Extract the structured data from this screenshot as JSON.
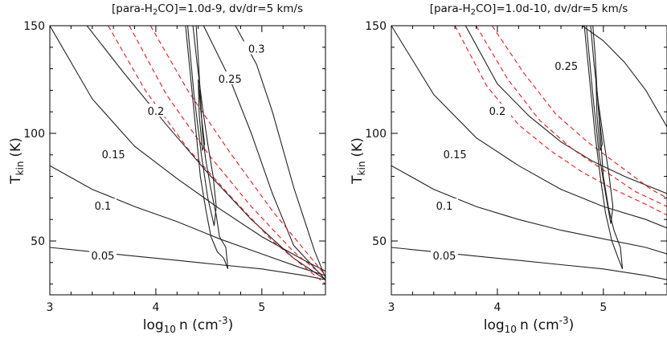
{
  "figure": {
    "panels": [
      {
        "title_prefix": "[para-H",
        "title_sub": "2",
        "title_suffix": "CO]=1.0d-9, dv/dr=5 km/s"
      },
      {
        "title_prefix": "[para-H",
        "title_sub": "2",
        "title_suffix": "CO]=1.0d-10, dv/dr=5 km/s"
      }
    ],
    "ylabel_main": "T",
    "ylabel_sub": "kin",
    "ylabel_unit": "(K)",
    "xlabel_main": "log",
    "xlabel_sub": "10",
    "xlabel_mid": "n (cm",
    "xlabel_sup": "-3",
    "xlabel_end": ")"
  },
  "chart_data": [
    {
      "type": "line",
      "title": "[para-H2CO]=1.0d-9, dv/dr=5 km/s",
      "xlabel": "log10 n (cm^-3)",
      "ylabel": "Tkin (K)",
      "xlim": [
        3,
        5.6
      ],
      "ylim": [
        25,
        150
      ],
      "x_ticks": [
        3,
        4,
        5
      ],
      "y_ticks": [
        50,
        100,
        150
      ],
      "series": [
        {
          "name": "0.05",
          "label_at": [
            3.5,
            43
          ],
          "x": [
            3,
            3.4,
            3.8,
            4.2,
            4.6,
            5.0,
            5.4,
            5.6
          ],
          "y": [
            47,
            45,
            43,
            41,
            39,
            37,
            34,
            32
          ]
        },
        {
          "name": "0.1",
          "label_at": [
            3.5,
            66
          ],
          "x": [
            3,
            3.4,
            3.8,
            4.2,
            4.6,
            5.0,
            5.4,
            5.6
          ],
          "y": [
            85,
            74,
            66,
            59,
            51,
            44,
            37,
            34
          ]
        },
        {
          "name": "0.15",
          "label_at": [
            3.6,
            90
          ],
          "x": [
            3,
            3.4,
            3.8,
            4.2,
            4.6,
            5.0,
            5.4,
            5.6
          ],
          "y": [
            150,
            116,
            94,
            79,
            65,
            52,
            41,
            36
          ]
        },
        {
          "name": "0.2",
          "label_at": [
            4.0,
            110
          ],
          "x": [
            3.35,
            3.7,
            4.1,
            4.5,
            4.9,
            5.3,
            5.6
          ],
          "y": [
            150,
            128,
            104,
            81,
            60,
            42,
            32
          ]
        },
        {
          "name": "0.25",
          "label_at": [
            4.7,
            125
          ],
          "x": [
            4.45,
            4.7,
            4.9,
            5.1,
            5.3,
            5.6
          ],
          "y": [
            150,
            125,
            100,
            72,
            48,
            32
          ]
        },
        {
          "name": "0.3",
          "label_at": [
            4.95,
            139
          ],
          "x": [
            4.75,
            4.95,
            5.1,
            5.3,
            5.5,
            5.6
          ],
          "y": [
            150,
            132,
            110,
            75,
            45,
            33
          ]
        }
      ],
      "ratio_model": [
        {
          "x": [
            3.55,
            3.9,
            4.3,
            4.7,
            5.1,
            5.6
          ],
          "y": [
            150,
            120,
            93,
            71,
            50,
            30
          ]
        },
        {
          "x": [
            3.75,
            4.1,
            4.5,
            4.9,
            5.3,
            5.6
          ],
          "y": [
            150,
            118,
            90,
            66,
            45,
            33
          ]
        },
        {
          "x": [
            3.95,
            4.3,
            4.7,
            5.1,
            5.6
          ],
          "y": [
            150,
            120,
            91,
            64,
            34
          ]
        }
      ],
      "probability_contours": [
        {
          "x": [
            4.28,
            4.33,
            4.38,
            4.42,
            4.47,
            4.52,
            4.58,
            4.64,
            4.68,
            4.66,
            4.6,
            4.57,
            4.52,
            4.47,
            4.44,
            4.42,
            4.4,
            4.38
          ],
          "y": [
            150,
            125,
            100,
            80,
            65,
            52,
            45,
            42,
            37,
            47,
            52,
            62,
            74,
            88,
            100,
            118,
            135,
            150
          ]
        },
        {
          "x": [
            4.3,
            4.36,
            4.43,
            4.49,
            4.55,
            4.57,
            4.54,
            4.49,
            4.44,
            4.39,
            4.35
          ],
          "y": [
            150,
            118,
            90,
            70,
            57,
            66,
            80,
            95,
            112,
            132,
            150
          ]
        },
        {
          "x": [
            4.4,
            4.43,
            4.46,
            4.44,
            4.41,
            4.4
          ],
          "y": [
            125,
            108,
            95,
            92,
            108,
            125
          ]
        }
      ]
    },
    {
      "type": "line",
      "title": "[para-H2CO]=1.0d-10, dv/dr=5 km/s",
      "xlabel": "log10 n (cm^-3)",
      "ylabel": "Tkin (K)",
      "xlim": [
        3,
        5.6
      ],
      "ylim": [
        25,
        150
      ],
      "x_ticks": [
        3,
        4,
        5
      ],
      "y_ticks": [
        50,
        100,
        150
      ],
      "series": [
        {
          "name": "0.05",
          "label_at": [
            3.5,
            43
          ],
          "x": [
            3,
            3.4,
            3.8,
            4.2,
            4.6,
            5.0,
            5.4,
            5.6
          ],
          "y": [
            47,
            45,
            43,
            41,
            39,
            37,
            34,
            32
          ]
        },
        {
          "name": "0.1",
          "label_at": [
            3.5,
            66
          ],
          "x": [
            3,
            3.4,
            3.8,
            4.2,
            4.6,
            5.0,
            5.4,
            5.6
          ],
          "y": [
            85,
            74,
            66,
            60,
            55,
            51,
            47,
            44
          ]
        },
        {
          "name": "0.15",
          "label_at": [
            3.6,
            90
          ],
          "x": [
            3,
            3.4,
            3.8,
            4.2,
            4.6,
            5.0,
            5.4,
            5.6
          ],
          "y": [
            150,
            118,
            98,
            85,
            74,
            66,
            60,
            56
          ]
        },
        {
          "name": "0.2",
          "label_at": [
            4.0,
            110
          ],
          "x": [
            3.7,
            4.0,
            4.3,
            4.6,
            4.9,
            5.2,
            5.6
          ],
          "y": [
            150,
            123,
            108,
            96,
            87,
            80,
            72
          ]
        },
        {
          "name": "0.25",
          "label_at": [
            4.65,
            131
          ],
          "x": [
            4.8,
            5.0,
            5.2,
            5.4,
            5.6
          ],
          "y": [
            150,
            143,
            133,
            120,
            103
          ]
        }
      ],
      "ratio_model": [
        {
          "x": [
            3.6,
            3.9,
            4.2,
            4.5,
            4.8,
            5.1,
            5.4,
            5.6
          ],
          "y": [
            150,
            122,
            104,
            92,
            82,
            74,
            67,
            62
          ]
        },
        {
          "x": [
            3.8,
            4.1,
            4.4,
            4.7,
            5.0,
            5.3,
            5.6
          ],
          "y": [
            150,
            125,
            106,
            93,
            83,
            73,
            66
          ]
        },
        {
          "x": [
            3.95,
            4.25,
            4.55,
            4.85,
            5.15,
            5.45,
            5.6
          ],
          "y": [
            150,
            128,
            109,
            96,
            85,
            74,
            70
          ]
        }
      ],
      "probability_contours": [
        {
          "x": [
            4.82,
            4.87,
            4.92,
            4.97,
            5.02,
            5.08,
            5.14,
            5.18,
            5.16,
            5.1,
            5.05,
            5.0,
            4.97,
            4.94,
            4.92,
            4.9
          ],
          "y": [
            150,
            125,
            100,
            80,
            63,
            50,
            42,
            37,
            47,
            55,
            65,
            80,
            100,
            120,
            138,
            150
          ]
        },
        {
          "x": [
            4.84,
            4.9,
            4.96,
            5.02,
            5.07,
            5.09,
            5.05,
            5.0,
            4.95,
            4.91,
            4.88
          ],
          "y": [
            150,
            118,
            90,
            72,
            58,
            66,
            82,
            98,
            115,
            133,
            150
          ]
        },
        {
          "x": [
            4.93,
            4.96,
            4.99,
            4.97,
            4.94,
            4.93
          ],
          "y": [
            125,
            108,
            95,
            92,
            108,
            125
          ]
        }
      ]
    }
  ]
}
